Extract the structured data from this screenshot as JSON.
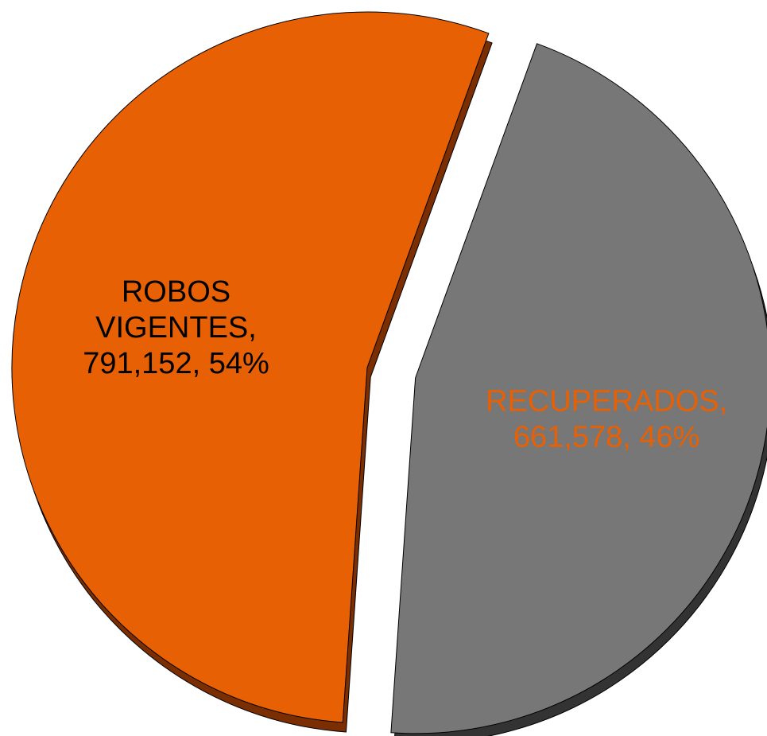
{
  "chart_data": {
    "type": "pie",
    "title": "",
    "slices": [
      {
        "label": "ROBOS VIGENTES",
        "label_lines": [
          "ROBOS",
          "VIGENTES,",
          "791,152, 54%"
        ],
        "value": 791152,
        "percent": 54,
        "color": "#E86004",
        "side_color": "#7A2E02",
        "label_color": "#000000",
        "exploded": false
      },
      {
        "label": "RECUPERADOS",
        "label_lines": [
          "RECUPERADOS,",
          "661,578, 46%"
        ],
        "value": 661578,
        "percent": 46,
        "color": "#777777",
        "side_color": "#333333",
        "label_color": "#E86004",
        "exploded": true
      }
    ],
    "legend": false,
    "style": "3d-pie"
  }
}
